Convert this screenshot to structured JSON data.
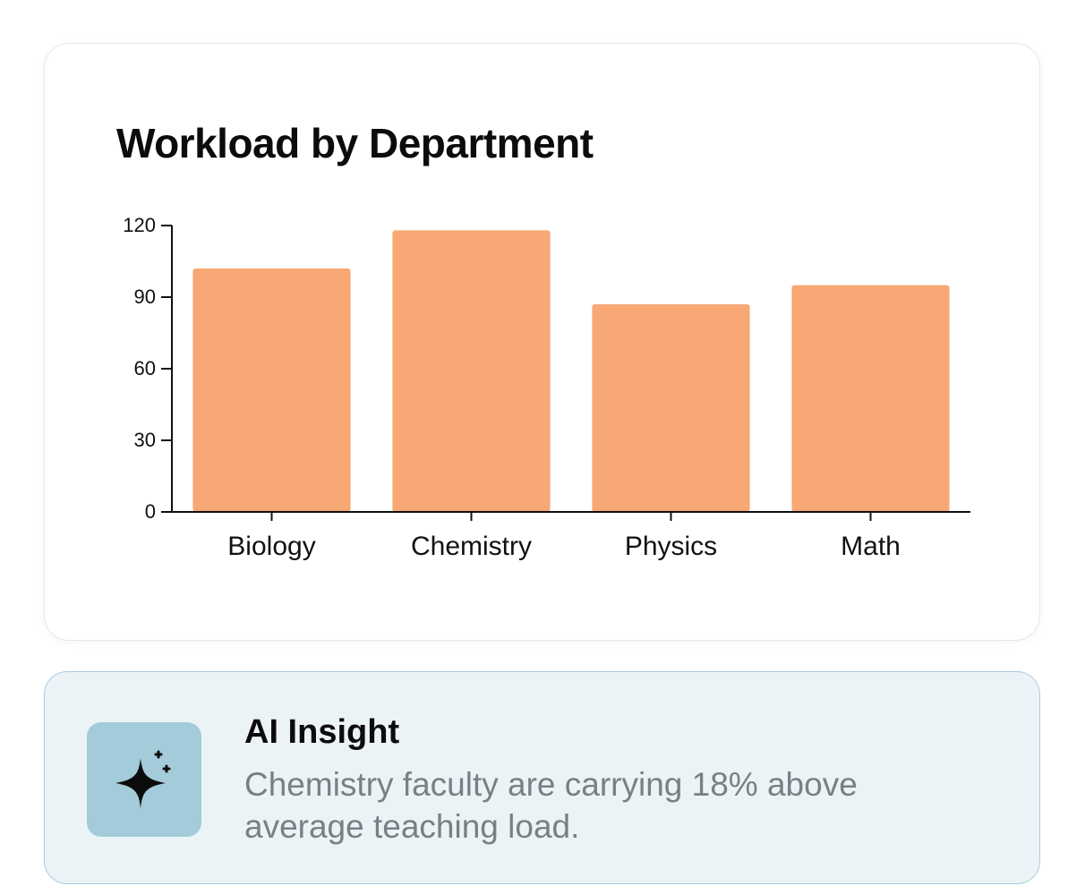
{
  "chart_card": {
    "title": "Workload by Department"
  },
  "chart_data": {
    "type": "bar",
    "title": "Workload by Department",
    "categories": [
      "Biology",
      "Chemistry",
      "Physics",
      "Math"
    ],
    "values": [
      102,
      118,
      87,
      95
    ],
    "yticks": [
      0,
      30,
      60,
      90,
      120
    ],
    "ylim": [
      0,
      120
    ],
    "xlabel": "",
    "ylabel": "",
    "grid": false,
    "bar_color": "#f7a874"
  },
  "insight": {
    "title": "AI Insight",
    "text": "Chemistry faculty are carrying 18% above average teaching load.",
    "icon": "sparkle-icon",
    "icon_bg_color": "#a3cbd9"
  }
}
